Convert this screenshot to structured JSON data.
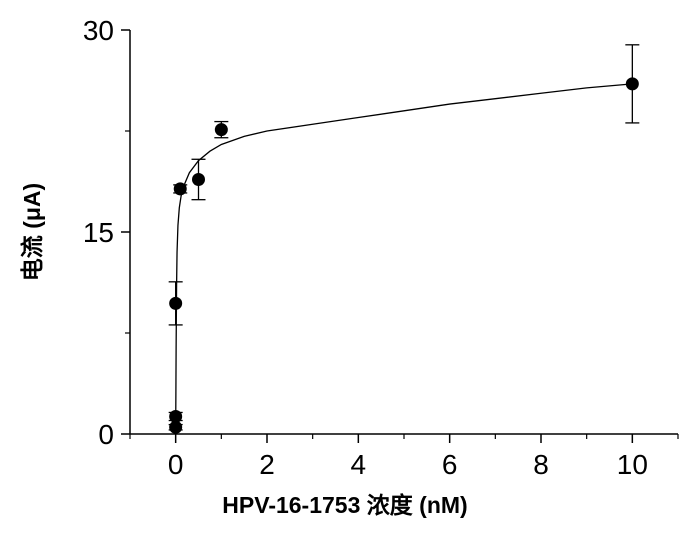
{
  "chart_data": {
    "type": "scatter",
    "title": "",
    "xlabel": "HPV-16-1753 浓度 (nM)",
    "ylabel": "电流 (μA)",
    "xlim": [
      -1.0,
      11.0
    ],
    "ylim": [
      0,
      30
    ],
    "xticks": [
      0,
      2,
      4,
      6,
      8,
      10
    ],
    "xtick_labels": [
      "0",
      "2",
      "4",
      "6",
      "8",
      "10"
    ],
    "yticks": [
      0,
      15,
      30
    ],
    "ytick_labels": [
      "0",
      "15",
      "30"
    ],
    "grid": false,
    "legend": "none",
    "series": [
      {
        "marker": "circle",
        "color": "#000000",
        "points": [
          {
            "x": 0.0,
            "y": 0.5,
            "err": 0.2
          },
          {
            "x": 0.0,
            "y": 1.3,
            "err": 0.3
          },
          {
            "x": 0.0,
            "y": 9.7,
            "err": 1.6
          },
          {
            "x": 0.1,
            "y": 18.2,
            "err": 0.3
          },
          {
            "x": 0.5,
            "y": 18.9,
            "err": 1.5
          },
          {
            "x": 1.0,
            "y": 22.6,
            "err": 0.6
          },
          {
            "x": 10.0,
            "y": 26.0,
            "err": 2.9
          }
        ]
      }
    ],
    "fit_curve": {
      "type": "line",
      "color": "#000000",
      "points": [
        [
          0.0,
          0.4
        ],
        [
          0.005,
          3.0
        ],
        [
          0.01,
          6.5
        ],
        [
          0.02,
          11.0
        ],
        [
          0.03,
          13.5
        ],
        [
          0.05,
          15.5
        ],
        [
          0.08,
          16.8
        ],
        [
          0.12,
          17.7
        ],
        [
          0.2,
          18.6
        ],
        [
          0.3,
          19.4
        ],
        [
          0.5,
          20.3
        ],
        [
          0.75,
          21.0
        ],
        [
          1.0,
          21.5
        ],
        [
          1.5,
          22.1
        ],
        [
          2.0,
          22.5
        ],
        [
          3.0,
          23.0
        ],
        [
          4.0,
          23.5
        ],
        [
          5.0,
          24.0
        ],
        [
          6.0,
          24.5
        ],
        [
          7.0,
          24.9
        ],
        [
          8.0,
          25.3
        ],
        [
          9.0,
          25.7
        ],
        [
          10.0,
          26.0
        ]
      ]
    }
  }
}
